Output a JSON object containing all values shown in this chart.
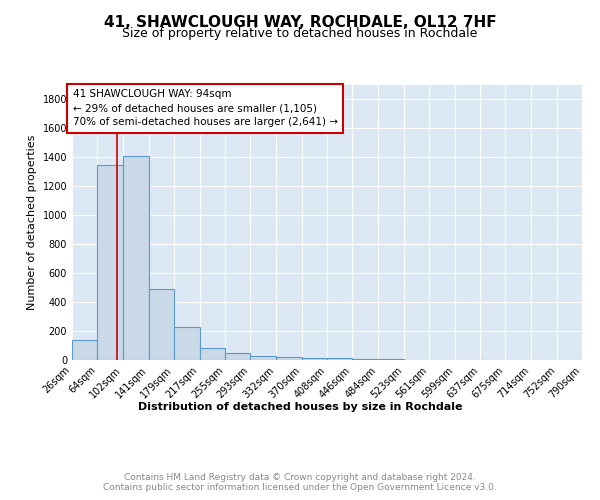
{
  "title": "41, SHAWCLOUGH WAY, ROCHDALE, OL12 7HF",
  "subtitle": "Size of property relative to detached houses in Rochdale",
  "xlabel": "Distribution of detached houses by size in Rochdale",
  "ylabel": "Number of detached properties",
  "bin_edges": [
    26,
    64,
    102,
    141,
    179,
    217,
    255,
    293,
    332,
    370,
    408,
    446,
    484,
    523,
    561,
    599,
    637,
    675,
    714,
    752,
    790
  ],
  "bar_heights": [
    140,
    1350,
    1410,
    490,
    230,
    85,
    50,
    30,
    20,
    15,
    15,
    10,
    10,
    0,
    0,
    0,
    0,
    0,
    0,
    0
  ],
  "bar_color": "#c9d9e8",
  "bar_edge_color": "#5a9ac9",
  "bar_edge_width": 0.8,
  "grid_color": "#ffffff",
  "bg_color": "#dce9f5",
  "property_size": 94,
  "red_line_color": "#cc0000",
  "annotation_line1": "41 SHAWCLOUGH WAY: 94sqm",
  "annotation_line2": "← 29% of detached houses are smaller (1,105)",
  "annotation_line3": "70% of semi-detached houses are larger (2,641) →",
  "annotation_box_color": "#cc0000",
  "ylim": [
    0,
    1900
  ],
  "yticks": [
    0,
    200,
    400,
    600,
    800,
    1000,
    1200,
    1400,
    1600,
    1800
  ],
  "footnote": "Contains HM Land Registry data © Crown copyright and database right 2024.\nContains public sector information licensed under the Open Government Licence v3.0.",
  "footnote_color": "#888888",
  "title_fontsize": 11,
  "subtitle_fontsize": 9,
  "axis_label_fontsize": 8,
  "tick_fontsize": 7,
  "annotation_fontsize": 7.5,
  "footnote_fontsize": 6.5
}
